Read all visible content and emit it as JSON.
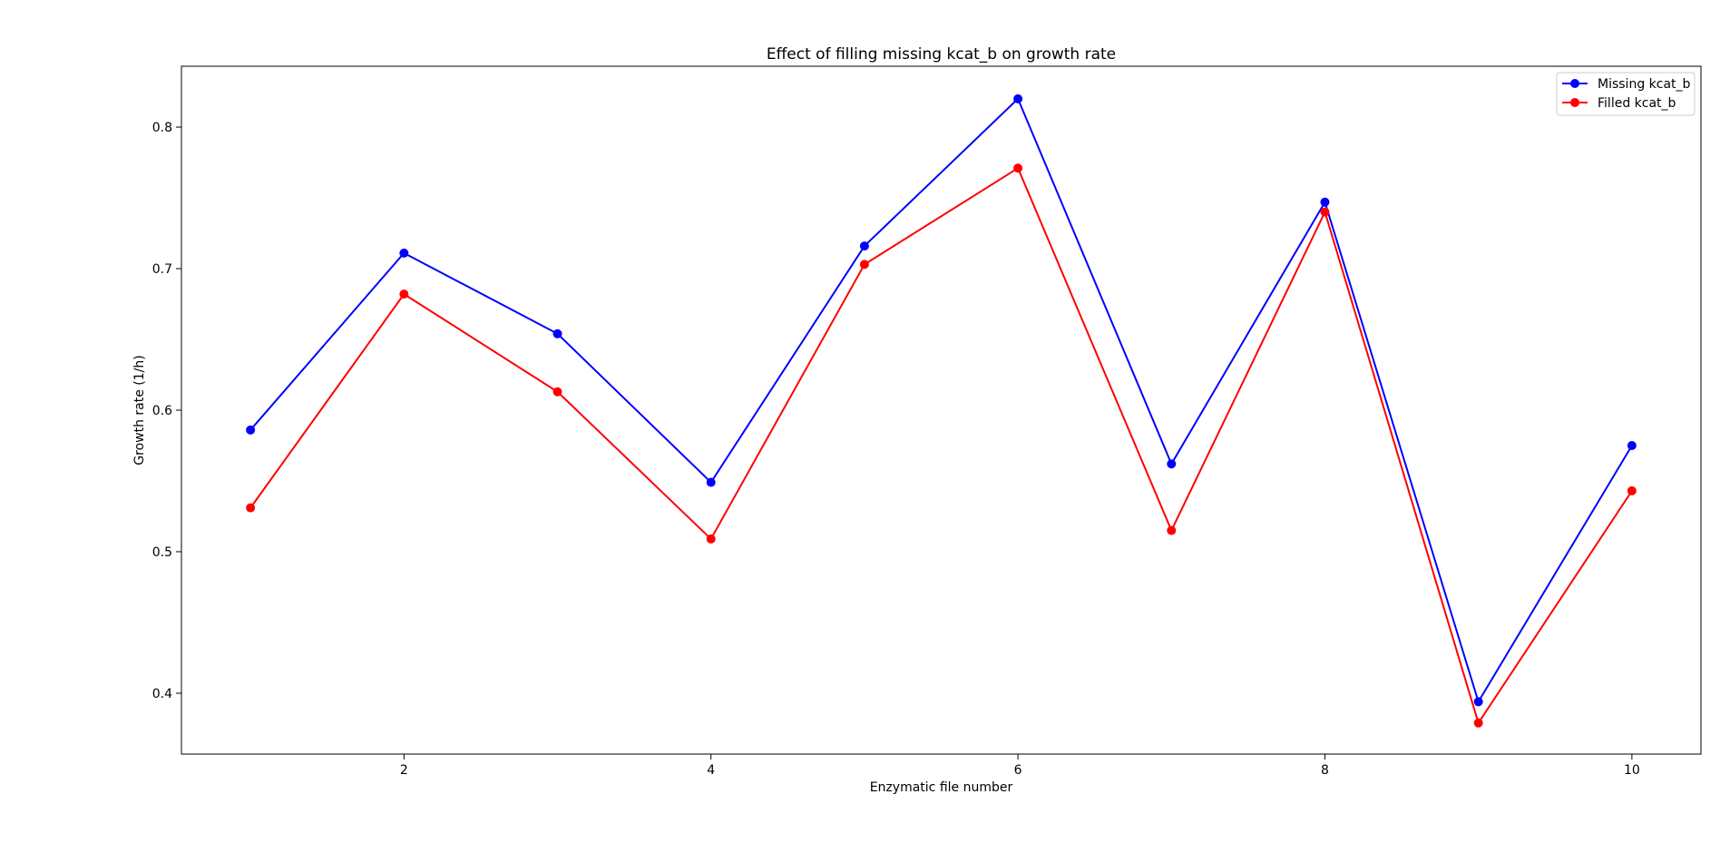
{
  "chart_data": {
    "type": "line",
    "title": "Effect of filling missing kcat_b on growth rate",
    "xlabel": "Enzymatic file number",
    "ylabel": "Growth rate (1/h)",
    "x": [
      1,
      2,
      3,
      4,
      5,
      6,
      7,
      8,
      9,
      10
    ],
    "xlim": [
      0.55,
      10.45
    ],
    "ylim": [
      0.357,
      0.843
    ],
    "xticks": [
      2,
      4,
      6,
      8,
      10
    ],
    "yticks": [
      0.4,
      0.5,
      0.6,
      0.7,
      0.8
    ],
    "xtick_labels": [
      "2",
      "4",
      "6",
      "8",
      "10"
    ],
    "ytick_labels": [
      "0.4",
      "0.5",
      "0.6",
      "0.7",
      "0.8"
    ],
    "grid": false,
    "legend_position": "top-right",
    "series": [
      {
        "name": "Missing kcat_b",
        "color": "#0000ff",
        "marker": "circle",
        "values": [
          0.586,
          0.711,
          0.654,
          0.549,
          0.716,
          0.82,
          0.562,
          0.747,
          0.394,
          0.575
        ]
      },
      {
        "name": "Filled kcat_b",
        "color": "#ff0000",
        "marker": "circle",
        "values": [
          0.531,
          0.682,
          0.613,
          0.509,
          0.703,
          0.771,
          0.515,
          0.74,
          0.379,
          0.543
        ]
      }
    ]
  }
}
